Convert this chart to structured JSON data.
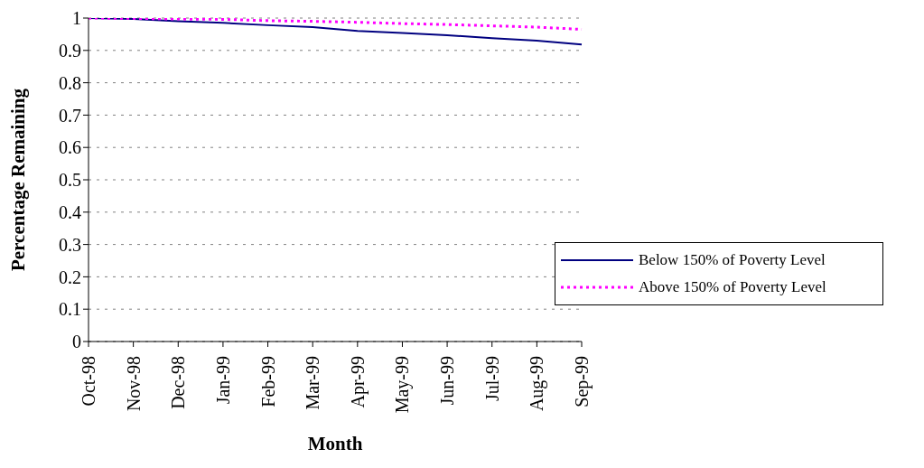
{
  "chart_data": {
    "type": "line",
    "xlabel": "Month",
    "ylabel": "Percentage Remaining",
    "categories": [
      "Oct-98",
      "Nov-98",
      "Dec-98",
      "Jan-99",
      "Feb-99",
      "Mar-99",
      "Apr-99",
      "May-99",
      "Jun-99",
      "Jul-99",
      "Aug-99",
      "Sep-99"
    ],
    "series": [
      {
        "name": "Below 150% of Poverty Level",
        "color": "#000080",
        "line_style": "solid",
        "values": [
          1,
          0.997,
          0.99,
          0.985,
          0.978,
          0.972,
          0.96,
          0.954,
          0.947,
          0.938,
          0.93,
          0.918
        ]
      },
      {
        "name": "Above 150% of Poverty Level",
        "color": "#ff00ff",
        "line_style": "dotted",
        "values": [
          1,
          0.999,
          0.997,
          0.996,
          0.992,
          0.99,
          0.987,
          0.983,
          0.98,
          0.976,
          0.972,
          0.965
        ]
      }
    ],
    "ylim": [
      0,
      1
    ],
    "yticks": [
      0,
      0.1,
      0.2,
      0.3,
      0.4,
      0.5,
      0.6,
      0.7,
      0.8,
      0.9,
      1
    ],
    "grid": "y",
    "legend": "bottom right",
    "marker": "none"
  }
}
